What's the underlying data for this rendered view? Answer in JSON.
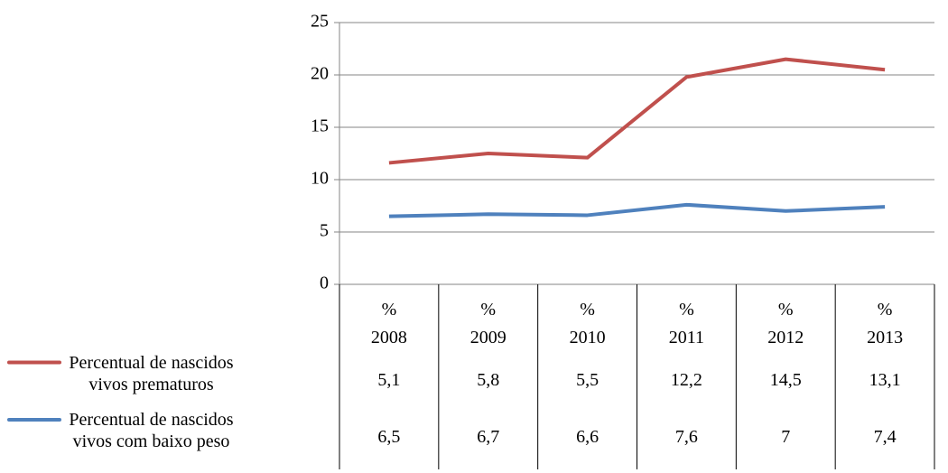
{
  "chart_data": {
    "type": "line",
    "stacked": true,
    "categories": [
      "% 2008",
      "% 2009",
      "% 2010",
      "% 2011",
      "% 2012",
      "% 2013"
    ],
    "series": [
      {
        "name": "Percentual de nascidos vivos prematuros",
        "color": "#c0504d",
        "values": [
          5.1,
          5.8,
          5.5,
          12.2,
          14.5,
          13.1
        ],
        "value_labels": [
          "5,1",
          "5,8",
          "5,5",
          "12,2",
          "14,5",
          "13,1"
        ]
      },
      {
        "name": "Percentual de nascidos vivos com baixo peso",
        "color": "#4f81bd",
        "values": [
          6.5,
          6.7,
          6.6,
          7.6,
          7,
          7.4
        ],
        "value_labels": [
          "6,5",
          "6,7",
          "6,6",
          "7,6",
          "7",
          "7,4"
        ]
      }
    ],
    "ylim": [
      0,
      25
    ],
    "yticks": [
      0,
      5,
      10,
      15,
      20,
      25
    ],
    "grid": true
  }
}
